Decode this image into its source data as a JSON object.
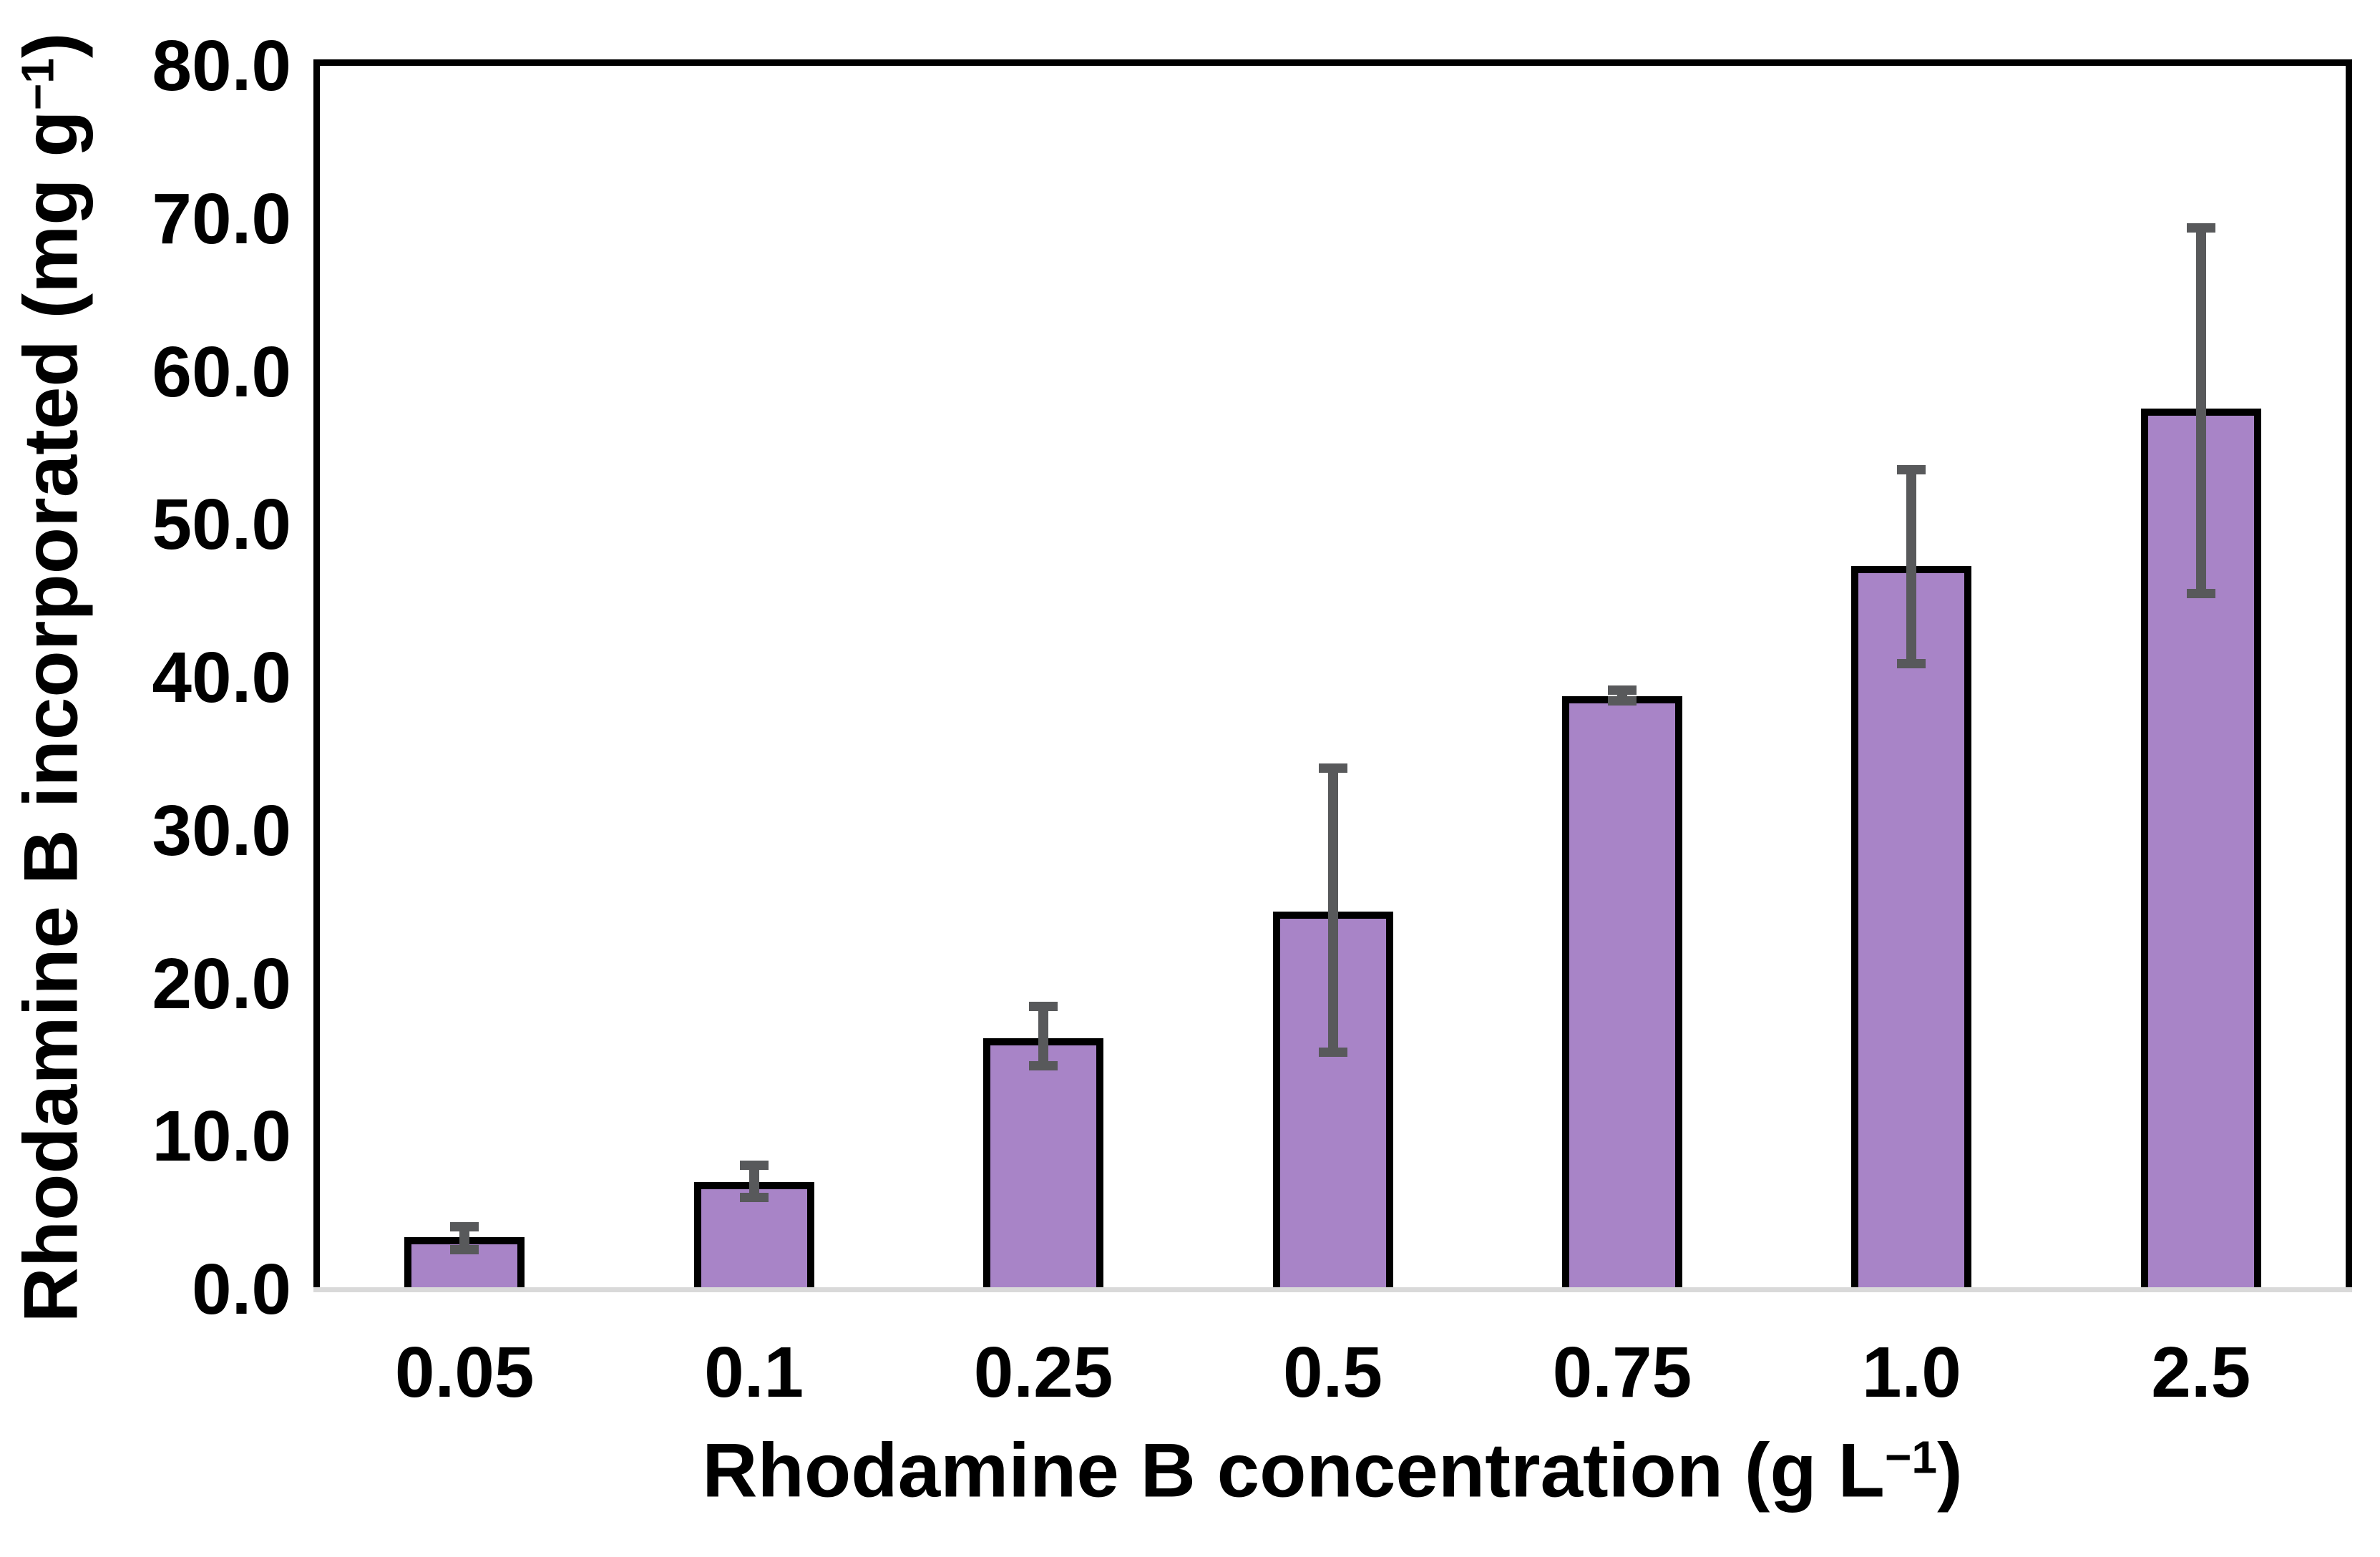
{
  "chart_data": {
    "type": "bar",
    "title": "",
    "categories": [
      "0.05",
      "0.1",
      "0.25",
      "0.5",
      "0.75",
      "1.0",
      "2.5"
    ],
    "values": [
      3.4,
      7.0,
      16.4,
      24.7,
      38.8,
      47.3,
      57.6
    ],
    "error_low": [
      2.6,
      6.0,
      14.6,
      15.5,
      38.5,
      40.9,
      45.5
    ],
    "error_high": [
      4.1,
      8.1,
      18.5,
      34.1,
      39.2,
      53.6,
      69.4
    ],
    "y_ticks": [
      "0.0",
      "10.0",
      "20.0",
      "30.0",
      "40.0",
      "50.0",
      "60.0",
      "70.0",
      "80.0"
    ],
    "y_tick_values": [
      0,
      10,
      20,
      30,
      40,
      50,
      60,
      70,
      80
    ],
    "ylim": [
      0,
      80
    ],
    "xlabel_main": "Rhodamine B concentration (g L",
    "xlabel_sup": "−1",
    "xlabel_end": ")",
    "ylabel_main": "Rhodamine B incorporated (mg g",
    "ylabel_sup": "−1",
    "ylabel_end": ")",
    "grid": false,
    "legend": "none",
    "bar_fill": "#a884c7",
    "bar_border": "#000000",
    "error_color": "#58595b",
    "baseline_color": "#d9d9d9",
    "frame_color": "#000000"
  }
}
